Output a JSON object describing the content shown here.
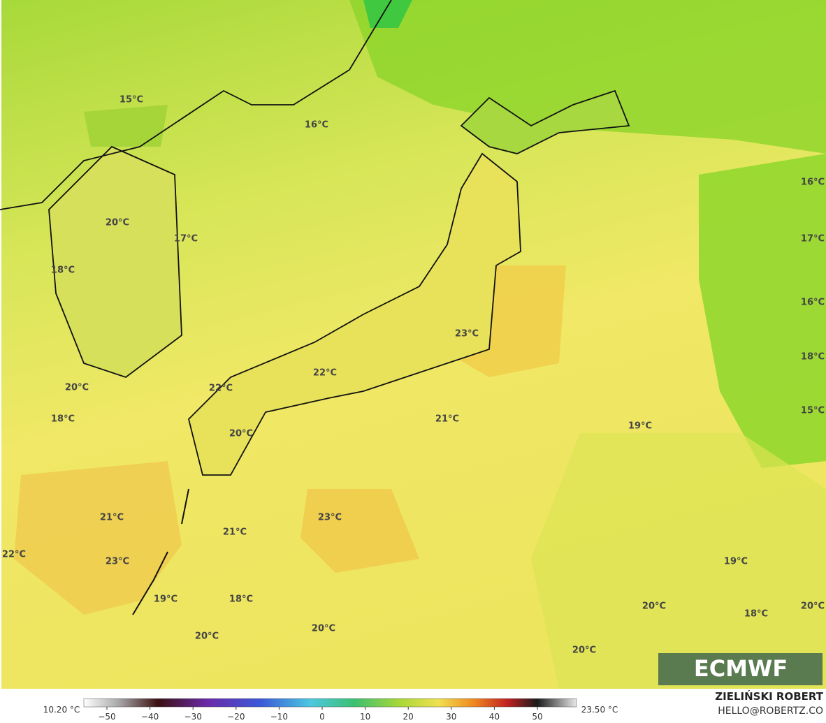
{
  "map": {
    "labels": [
      "15°C",
      "16°C",
      "16°C",
      "17°C",
      "16°C",
      "18°C",
      "15°C",
      "20°C",
      "17°C",
      "18°C",
      "23°C",
      "22°C",
      "22°C",
      "20°C",
      "18°C",
      "21°C",
      "19°C",
      "20°C",
      "21°C",
      "23°C",
      "21°C",
      "22°C",
      "23°C",
      "19°C",
      "19°C",
      "18°C",
      "20°C",
      "20°C",
      "18°C",
      "20°C",
      "20°C",
      "20°C"
    ]
  },
  "logo": "ECMWF",
  "colorbar": {
    "min_label": "10.20 °C",
    "max_label": "23.50 °C",
    "ticks": [
      {
        "value": -50,
        "label": "−50"
      },
      {
        "value": -40,
        "label": "−40"
      },
      {
        "value": -30,
        "label": "−30"
      },
      {
        "value": -20,
        "label": "−20"
      },
      {
        "value": -10,
        "label": "−10"
      },
      0,
      10,
      20,
      30,
      40,
      50
    ]
  },
  "credits": {
    "author": "ZIELIŃSKI ROBERT",
    "contact": "HELLO@ROBERTZ.CO"
  }
}
